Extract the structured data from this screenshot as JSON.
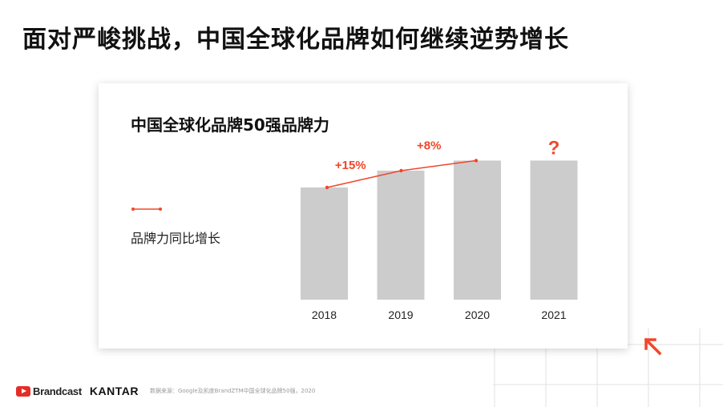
{
  "slide": {
    "title": "面对严峻挑战，中国全球化品牌如何继续逆势增长"
  },
  "card": {
    "title": "中国全球化品牌50强品牌力"
  },
  "legend": {
    "line_label": "品牌力同比增长"
  },
  "chart_data": {
    "type": "bar",
    "title": "中国全球化品牌50强品牌力",
    "categories": [
      "2018",
      "2019",
      "2020",
      "2021"
    ],
    "values": [
      100,
      115,
      124,
      124
    ],
    "value_note": "relative index (2018 = 100); 2021 bar shown as placeholder, unknown",
    "growth_line": {
      "name": "品牌力同比增长",
      "categories": [
        "2018",
        "2019",
        "2020"
      ],
      "labels": [
        {
          "between": [
            "2018",
            "2019"
          ],
          "text": "+15%"
        },
        {
          "between": [
            "2019",
            "2020"
          ],
          "text": "+8%"
        }
      ]
    },
    "unknown_marker": {
      "category": "2021",
      "text": "?"
    },
    "colors": {
      "bar": "#cccccc",
      "line": "#f0462a",
      "label": "#f0462a"
    },
    "grid": false,
    "legend_position": "left"
  },
  "footer": {
    "brand_youtube": "Brandcast",
    "brand_kantar": "KANTAR",
    "source": "数据来源：Google及凯度BrandZTM中国全球化品牌50强，2020"
  },
  "icons": {
    "youtube": "youtube-play-icon",
    "arrow": "arrow-up-left-icon"
  }
}
